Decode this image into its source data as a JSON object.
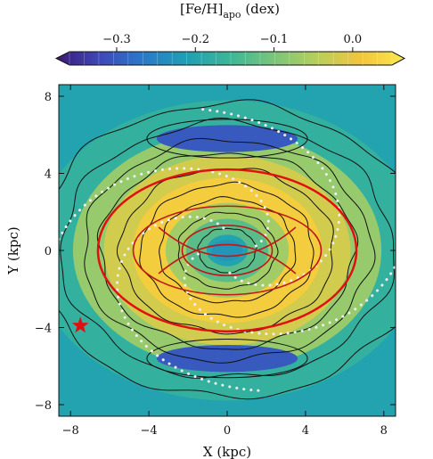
{
  "chart_data": {
    "type": "heatmap",
    "colorbar": {
      "label_main": "[Fe/H]",
      "label_sub": "apo",
      "label_unit": " (dex)",
      "ticks": [
        {
          "value": -0.3,
          "label": "−0.3"
        },
        {
          "value": -0.2,
          "label": "−0.2"
        },
        {
          "value": -0.1,
          "label": "−0.1"
        },
        {
          "value": 0.0,
          "label": "0.0"
        }
      ],
      "range": [
        -0.36,
        0.05
      ],
      "extend": "both",
      "colors": [
        "#3b1a78",
        "#3f48b8",
        "#2b79c9",
        "#1fa0b4",
        "#3db697",
        "#79c57a",
        "#b8cf5c",
        "#f2c53c",
        "#fbe94a"
      ]
    },
    "xlabel": "X (kpc)",
    "ylabel": "Y (kpc)",
    "xlim": [
      -8.6,
      8.6
    ],
    "ylim": [
      -8.6,
      8.6
    ],
    "xticks": [
      {
        "value": -8,
        "label": "−8"
      },
      {
        "value": -4,
        "label": "−4"
      },
      {
        "value": 0,
        "label": "0"
      },
      {
        "value": 4,
        "label": "4"
      },
      {
        "value": 8,
        "label": "8"
      }
    ],
    "yticks": [
      {
        "value": 8,
        "label": "8"
      },
      {
        "value": 4,
        "label": "4"
      },
      {
        "value": 0,
        "label": "0"
      },
      {
        "value": -4,
        "label": "−4"
      },
      {
        "value": -8,
        "label": "−8"
      }
    ],
    "field": {
      "center_feh": -0.22,
      "rings": [
        {
          "r": 1.0,
          "feh": -0.2
        },
        {
          "r": 2.0,
          "feh": -0.13
        },
        {
          "r": 3.0,
          "feh": -0.07
        },
        {
          "r": 4.6,
          "feh": 0.01
        },
        {
          "r": 6.0,
          "feh": -0.03
        },
        {
          "r": 7.5,
          "feh": -0.08
        },
        {
          "r": 9.5,
          "feh": -0.17
        }
      ],
      "low_arcs": [
        {
          "cx": 0,
          "cy": 5.8,
          "feh": -0.29
        },
        {
          "cx": 0,
          "cy": -5.6,
          "feh": -0.29
        }
      ]
    },
    "sun_marker": {
      "x": -7.5,
      "y": -3.9,
      "color": "#e01010",
      "symbol": "star"
    },
    "red_orbits": [
      {
        "rx": 6.6,
        "ry": 4.2,
        "color": "#e01010"
      },
      {
        "rx": 4.8,
        "ry": 2.3,
        "color": "#c01818"
      },
      {
        "rx": 2.3,
        "ry": 1.3,
        "color": "#c01818"
      }
    ],
    "dotted_spiral_color": "#f0f0f0",
    "contour_color": "#111111"
  }
}
